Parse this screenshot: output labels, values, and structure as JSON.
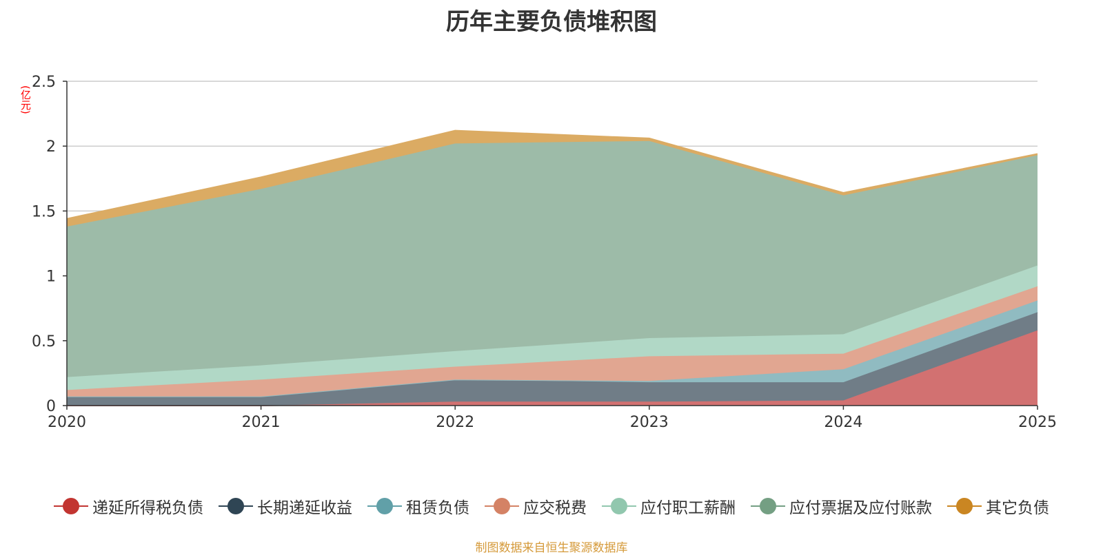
{
  "chart_data": {
    "type": "area",
    "stacked": true,
    "title": "历年主要负债堆积图",
    "unit": "(亿元)",
    "x": [
      "2020",
      "2021",
      "2022",
      "2023",
      "2024",
      "2025"
    ],
    "ylim": [
      0,
      2.5
    ],
    "yticks": [
      "0",
      "0.5",
      "1",
      "1.5",
      "2",
      "2.5"
    ],
    "grid": true,
    "legend_position": "bottom",
    "series": [
      {
        "name": "递延所得税负债",
        "color": "#c23531",
        "area_color": "#d27171",
        "values": [
          0.0,
          0.0,
          0.03,
          0.03,
          0.04,
          0.58
        ]
      },
      {
        "name": "长期递延收益",
        "color": "#2f4554",
        "area_color": "#707d87",
        "values": [
          0.07,
          0.07,
          0.17,
          0.15,
          0.14,
          0.14
        ]
      },
      {
        "name": "租赁负债",
        "color": "#61a0a8",
        "area_color": "#90bbc1",
        "values": [
          0.0,
          0.0,
          0.0,
          0.01,
          0.1,
          0.09
        ]
      },
      {
        "name": "应交税费",
        "color": "#d48265",
        "area_color": "#e1a691",
        "values": [
          0.05,
          0.13,
          0.1,
          0.19,
          0.12,
          0.11
        ]
      },
      {
        "name": "应付职工薪酬",
        "color": "#91c7ae",
        "area_color": "#b1d8c6",
        "values": [
          0.1,
          0.11,
          0.12,
          0.14,
          0.15,
          0.16
        ]
      },
      {
        "name": "应付票据及应付账款",
        "color": "#749f83",
        "area_color": "#9dbba8",
        "values": [
          1.16,
          1.36,
          1.6,
          1.52,
          1.07,
          0.85
        ]
      },
      {
        "name": "其它负债",
        "color": "#ca8622",
        "area_color": "#dbab63",
        "values": [
          0.06,
          0.09,
          0.1,
          0.02,
          0.02,
          0.01
        ]
      }
    ]
  },
  "source": "制图数据来自恒生聚源数据库"
}
